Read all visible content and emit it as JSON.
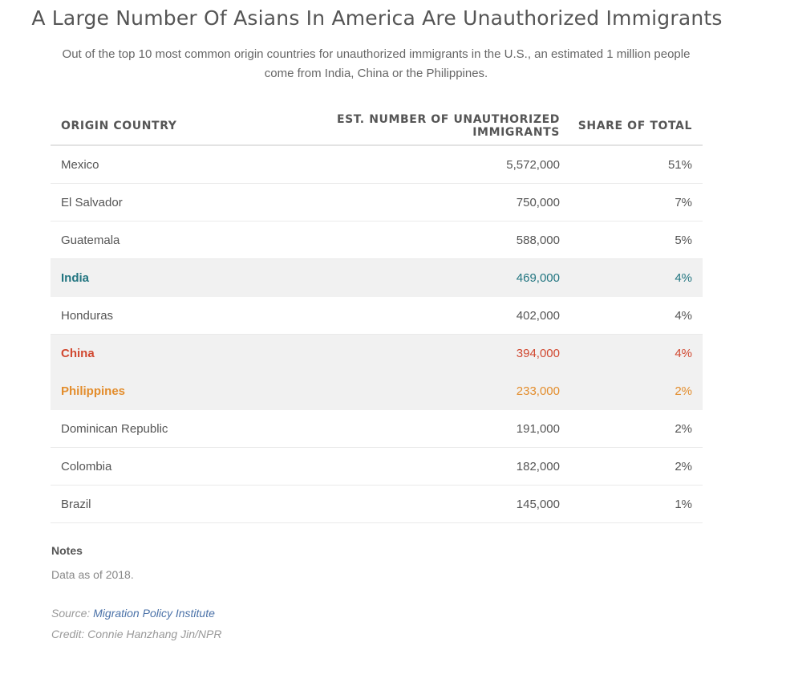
{
  "chart_data": {
    "type": "table",
    "title": "A Large Number Of Asians In America Are Unauthorized Immigrants",
    "subtitle": "Out of the top 10 most common origin countries for unauthorized immigrants in the U.S., an estimated 1 million people come from India, China or the Philippines.",
    "columns": [
      "ORIGIN COUNTRY",
      "EST. NUMBER OF UNAUTHORIZED IMMIGRANTS",
      "SHARE OF TOTAL"
    ],
    "rows": [
      {
        "country": "Mexico",
        "number": "5,572,000",
        "share": "51%",
        "highlight": "none"
      },
      {
        "country": "El Salvador",
        "number": "750,000",
        "share": "7%",
        "highlight": "none"
      },
      {
        "country": "Guatemala",
        "number": "588,000",
        "share": "5%",
        "highlight": "none"
      },
      {
        "country": "India",
        "number": "469,000",
        "share": "4%",
        "highlight": "india"
      },
      {
        "country": "Honduras",
        "number": "402,000",
        "share": "4%",
        "highlight": "none"
      },
      {
        "country": "China",
        "number": "394,000",
        "share": "4%",
        "highlight": "china"
      },
      {
        "country": "Philippines",
        "number": "233,000",
        "share": "2%",
        "highlight": "phil"
      },
      {
        "country": "Dominican Republic",
        "number": "191,000",
        "share": "2%",
        "highlight": "none"
      },
      {
        "country": "Colombia",
        "number": "182,000",
        "share": "2%",
        "highlight": "none"
      },
      {
        "country": "Brazil",
        "number": "145,000",
        "share": "1%",
        "highlight": "none"
      }
    ],
    "highlight_colors": {
      "india": "#237681",
      "china": "#d14830",
      "phil": "#e38d2c",
      "row_background": "#f1f1f1"
    }
  },
  "notes": {
    "label": "Notes",
    "text": "Data as of 2018."
  },
  "source": {
    "prefix": "Source: ",
    "link_text": "Migration Policy Institute"
  },
  "credit": "Credit: Connie Hanzhang Jin/NPR"
}
